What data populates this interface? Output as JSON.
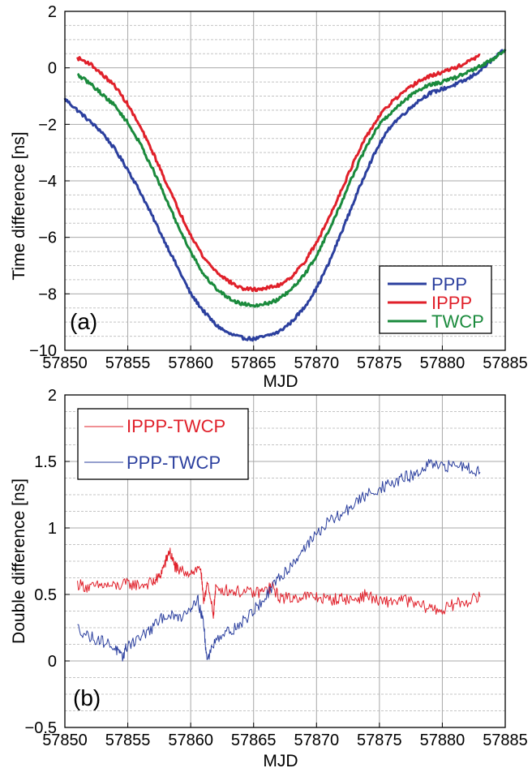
{
  "chart_data": [
    {
      "id": "a",
      "type": "line",
      "panel_label": "(a)",
      "xlabel": "MJD",
      "ylabel": "Time difference [ns]",
      "xlim": [
        57850,
        57885
      ],
      "ylim": [
        -10,
        2
      ],
      "x_ticks": [
        57850,
        57855,
        57860,
        57865,
        57870,
        57875,
        57880,
        57885
      ],
      "y_ticks": [
        -10,
        -8,
        -6,
        -4,
        -2,
        0,
        2
      ],
      "grid": true,
      "legend_position": "lower-right",
      "line_width": 3,
      "series": [
        {
          "name": "PPP",
          "color": "#2b3f9e",
          "x": [
            57850,
            57851,
            57852,
            57853,
            57854,
            57855,
            57856,
            57857,
            57858,
            57859,
            57860,
            57861,
            57862,
            57863,
            57864,
            57865,
            57866,
            57867,
            57868,
            57869,
            57870,
            57871,
            57872,
            57873,
            57874,
            57875,
            57876,
            57877,
            57878,
            57879,
            57880,
            57881,
            57882,
            57883,
            57884,
            57885
          ],
          "y": [
            -1.1,
            -1.5,
            -1.9,
            -2.3,
            -2.9,
            -3.6,
            -4.4,
            -5.3,
            -6.2,
            -7.1,
            -8.0,
            -8.6,
            -9.1,
            -9.4,
            -9.55,
            -9.6,
            -9.5,
            -9.35,
            -9.0,
            -8.5,
            -7.8,
            -6.9,
            -5.8,
            -4.7,
            -3.6,
            -2.7,
            -2.0,
            -1.6,
            -1.2,
            -0.9,
            -0.75,
            -0.6,
            -0.4,
            -0.1,
            0.3,
            0.65
          ]
        },
        {
          "name": "IPPP",
          "color": "#e0202a",
          "x": [
            57851,
            57852,
            57853,
            57854,
            57855,
            57856,
            57857,
            57858,
            57859,
            57860,
            57861,
            57862,
            57863,
            57864,
            57865,
            57866,
            57867,
            57868,
            57869,
            57870,
            57871,
            57872,
            57873,
            57874,
            57875,
            57876,
            57877,
            57878,
            57879,
            57880,
            57881,
            57882,
            57883
          ],
          "y": [
            0.35,
            0.15,
            -0.25,
            -0.65,
            -1.3,
            -2.1,
            -3.0,
            -4.0,
            -5.0,
            -5.9,
            -6.7,
            -7.2,
            -7.55,
            -7.8,
            -7.85,
            -7.8,
            -7.7,
            -7.4,
            -6.9,
            -6.2,
            -5.3,
            -4.3,
            -3.3,
            -2.4,
            -1.7,
            -1.2,
            -0.85,
            -0.5,
            -0.3,
            -0.15,
            0.0,
            0.2,
            0.45
          ]
        },
        {
          "name": "TWCP",
          "color": "#1a8a3c",
          "x": [
            57851,
            57852,
            57853,
            57854,
            57855,
            57856,
            57857,
            57858,
            57859,
            57860,
            57861,
            57862,
            57863,
            57864,
            57865,
            57866,
            57867,
            57868,
            57869,
            57870,
            57871,
            57872,
            57873,
            57874,
            57875,
            57876,
            57877,
            57878,
            57879,
            57880,
            57881,
            57882,
            57883,
            57884,
            57885
          ],
          "y": [
            -0.25,
            -0.55,
            -0.95,
            -1.35,
            -1.95,
            -2.7,
            -3.6,
            -4.6,
            -5.6,
            -6.5,
            -7.3,
            -7.8,
            -8.15,
            -8.35,
            -8.4,
            -8.35,
            -8.2,
            -7.85,
            -7.35,
            -6.65,
            -5.75,
            -4.75,
            -3.7,
            -2.75,
            -2.0,
            -1.55,
            -1.15,
            -0.8,
            -0.6,
            -0.5,
            -0.35,
            -0.15,
            0.05,
            0.3,
            0.65
          ]
        }
      ]
    },
    {
      "id": "b",
      "type": "line",
      "panel_label": "(b)",
      "xlabel": "MJD",
      "ylabel": "Double difference [ns]",
      "xlim": [
        57850,
        57885
      ],
      "ylim": [
        -0.5,
        2
      ],
      "x_ticks": [
        57850,
        57855,
        57860,
        57865,
        57870,
        57875,
        57880,
        57885
      ],
      "y_ticks": [
        -0.5,
        0,
        0.5,
        1,
        1.5,
        2
      ],
      "grid": true,
      "legend_position": "top-left",
      "line_width": 1,
      "series": [
        {
          "name": "IPPP-TWCP",
          "color": "#e0202a",
          "x": [
            57851,
            57852,
            57853,
            57854,
            57855,
            57856,
            57857,
            57857.5,
            57858,
            57858.3,
            57858.7,
            57859,
            57860,
            57860.8,
            57861,
            57861.3,
            57861.8,
            57862,
            57863,
            57864,
            57865,
            57866,
            57866.5,
            57867,
            57868,
            57869,
            57870,
            57871,
            57872,
            57873,
            57874,
            57875,
            57876,
            57877,
            57878,
            57879,
            57880,
            57881,
            57882,
            57883
          ],
          "y": [
            0.58,
            0.55,
            0.57,
            0.56,
            0.58,
            0.57,
            0.59,
            0.63,
            0.74,
            0.83,
            0.72,
            0.68,
            0.67,
            0.7,
            0.45,
            0.58,
            0.35,
            0.55,
            0.53,
            0.52,
            0.51,
            0.53,
            0.56,
            0.48,
            0.47,
            0.49,
            0.48,
            0.46,
            0.47,
            0.46,
            0.5,
            0.44,
            0.45,
            0.46,
            0.42,
            0.4,
            0.38,
            0.43,
            0.45,
            0.48
          ]
        },
        {
          "name": "PPP-TWCP",
          "color": "#2b3f9e",
          "x": [
            57851,
            57852,
            57853,
            57854,
            57854.5,
            57855,
            57856,
            57857,
            57858,
            57859,
            57860,
            57860.5,
            57861,
            57861.3,
            57862,
            57863,
            57864,
            57865,
            57866,
            57867,
            57868,
            57869,
            57870,
            57871,
            57872,
            57873,
            57874,
            57875,
            57876,
            57877,
            57878,
            57879,
            57880,
            57881,
            57882,
            57883
          ],
          "y": [
            0.25,
            0.18,
            0.15,
            0.1,
            0.02,
            0.12,
            0.18,
            0.25,
            0.35,
            0.32,
            0.4,
            0.48,
            0.3,
            0.0,
            0.18,
            0.22,
            0.28,
            0.38,
            0.48,
            0.62,
            0.72,
            0.85,
            0.95,
            1.05,
            1.1,
            1.18,
            1.25,
            1.3,
            1.33,
            1.38,
            1.4,
            1.48,
            1.45,
            1.48,
            1.46,
            1.42
          ]
        }
      ]
    }
  ]
}
